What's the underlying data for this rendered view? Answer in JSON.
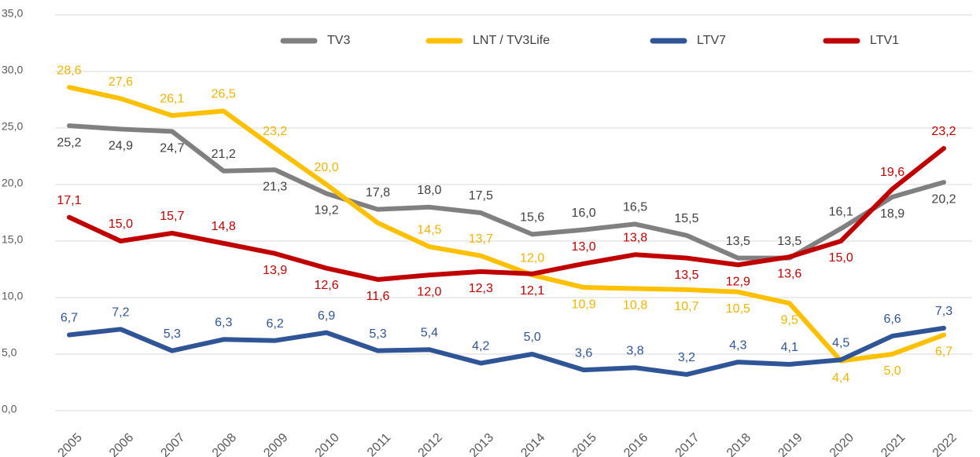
{
  "chart_data": {
    "type": "line",
    "categories": [
      "2005",
      "2006",
      "2007",
      "2008",
      "2009",
      "2010",
      "2011",
      "2012",
      "2013",
      "2014",
      "2015",
      "2016",
      "2017",
      "2018",
      "2019",
      "2020",
      "2021",
      "2022"
    ],
    "series": [
      {
        "name": "TV3",
        "color": "#808080",
        "label_color": "#404040",
        "values": [
          25.2,
          24.9,
          24.7,
          21.2,
          21.3,
          19.2,
          17.8,
          18.0,
          17.5,
          15.6,
          16.0,
          16.5,
          15.5,
          13.5,
          13.5,
          16.1,
          18.9,
          20.2
        ],
        "value_labels": [
          "25,2",
          "24,9",
          "24,7",
          "21,2",
          "21,3",
          "19,2",
          "17,8",
          "18,0",
          "17,5",
          "15,6",
          "16,0",
          "16,5",
          "15,5",
          "13,5",
          "13,5",
          "16,1",
          "18,9",
          "20,2"
        ]
      },
      {
        "name": "LNT / TV3Life",
        "color": "#ffc000",
        "label_color": "#f0b400",
        "values": [
          28.6,
          27.6,
          26.1,
          26.5,
          23.2,
          20.0,
          16.6,
          14.5,
          13.7,
          12.0,
          10.9,
          10.8,
          10.7,
          10.5,
          9.5,
          4.4,
          5.0,
          6.7
        ],
        "value_labels": [
          "28,6",
          "27,6",
          "26,1",
          "26,5",
          "23,2",
          "20,0",
          null,
          "14,5",
          "13,7",
          "12,0",
          "10,9",
          "10,8",
          "10,7",
          "10,5",
          "9,5",
          "4,4",
          "5,0",
          "6,7"
        ]
      },
      {
        "name": "LTV7",
        "color": "#2f5597",
        "label_color": "#2f5597",
        "values": [
          6.7,
          7.2,
          5.3,
          6.3,
          6.2,
          6.9,
          5.3,
          5.4,
          4.2,
          5.0,
          3.6,
          3.8,
          3.2,
          4.3,
          4.1,
          4.5,
          6.6,
          7.3
        ],
        "value_labels": [
          "6,7",
          "7,2",
          "5,3",
          "6,3",
          "6,2",
          "6,9",
          "5,3",
          "5,4",
          "4,2",
          "5,0",
          "3,6",
          "3,8",
          "3,2",
          "4,3",
          "4,1",
          "4,5",
          "6,6",
          "7,3"
        ]
      },
      {
        "name": "LTV1",
        "color": "#c00000",
        "label_color": "#c00000",
        "values": [
          17.1,
          15.0,
          15.7,
          14.8,
          13.9,
          12.6,
          11.6,
          12.0,
          12.3,
          12.1,
          13.0,
          13.8,
          13.5,
          12.9,
          13.6,
          15.0,
          19.6,
          23.2
        ],
        "value_labels": [
          "17,1",
          "15,0",
          "15,7",
          "14,8",
          "13,9",
          "12,6",
          "11,6",
          "12,0",
          "12,3",
          "12,1",
          "13,0",
          "13,8",
          "13,5",
          "12,9",
          "13,6",
          "15,0",
          "19,6",
          "23,2"
        ]
      }
    ],
    "ylim": [
      0,
      35
    ],
    "yticks": [
      {
        "value": 0,
        "label": "0,0"
      },
      {
        "value": 5,
        "label": "5,0"
      },
      {
        "value": 10,
        "label": "10,0"
      },
      {
        "value": 15,
        "label": "15,0"
      },
      {
        "value": 20,
        "label": "20,0"
      },
      {
        "value": 25,
        "label": "25,0"
      },
      {
        "value": 30,
        "label": "30,0"
      },
      {
        "value": 35,
        "label": "35,0"
      }
    ],
    "grid": true,
    "legend": "top"
  }
}
